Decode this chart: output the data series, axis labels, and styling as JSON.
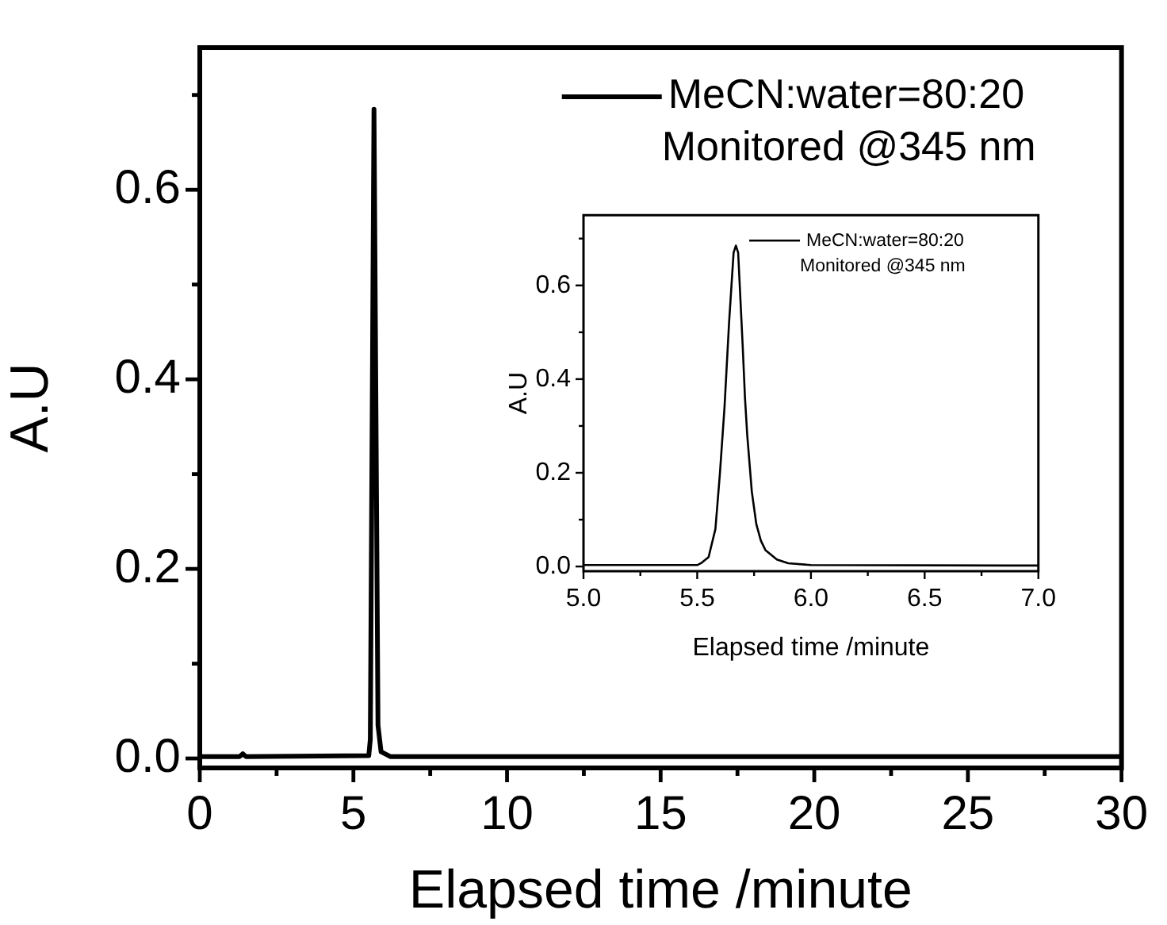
{
  "chart_data": [
    {
      "type": "line",
      "xlabel": "Elapsed time /minute",
      "ylabel": "A.U",
      "legend": "top right",
      "annotations": [
        "Monitored @345 nm"
      ],
      "xlim": [
        0,
        30
      ],
      "xticks": [
        0,
        {
          "value": 2.5,
          "label": null
        },
        5,
        {
          "value": 7.5,
          "label": null
        },
        10,
        {
          "value": 12.5,
          "label": null
        },
        15,
        {
          "value": 17.5,
          "label": null
        },
        20,
        {
          "value": 22.5,
          "label": null
        },
        25,
        {
          "value": 27.5,
          "label": null
        },
        30
      ],
      "ylim": [
        -0.01,
        0.75
      ],
      "yticks": [
        {
          "value": 0,
          "label": "0.0"
        },
        {
          "value": 0.1,
          "label": null
        },
        {
          "value": 0.2,
          "label": "0.2"
        },
        {
          "value": 0.3,
          "label": null
        },
        {
          "value": 0.4,
          "label": "0.4"
        },
        {
          "value": 0.5,
          "label": null
        },
        {
          "value": 0.6,
          "label": "0.6"
        },
        {
          "value": 0.7,
          "label": null
        }
      ],
      "series": [
        {
          "name": "MeCN:water=80:20",
          "color": "#000000",
          "x": [
            0,
            1.3,
            1.4,
            1.5,
            5.5,
            5.55,
            5.67,
            5.8,
            5.9,
            6.2,
            30
          ],
          "values": [
            0.002,
            0.002,
            0.005,
            0.002,
            0.003,
            0.02,
            0.685,
            0.035,
            0.007,
            0.002,
            0.002
          ]
        }
      ]
    },
    {
      "type": "line",
      "xlabel": "Elapsed time /minute",
      "ylabel": "A.U",
      "legend": "top right",
      "annotations": [
        "Monitored @345 nm"
      ],
      "xlim": [
        5,
        7
      ],
      "xticks": [
        {
          "value": 5,
          "label": "5.0"
        },
        {
          "value": 5.25,
          "label": null
        },
        {
          "value": 5.5,
          "label": "5.5"
        },
        {
          "value": 5.75,
          "label": null
        },
        {
          "value": 6,
          "label": "6.0"
        },
        {
          "value": 6.25,
          "label": null
        },
        {
          "value": 6.5,
          "label": "6.5"
        },
        {
          "value": 6.75,
          "label": null
        },
        {
          "value": 7,
          "label": "7.0"
        }
      ],
      "ylim": [
        -0.01,
        0.75
      ],
      "yticks": [
        {
          "value": 0,
          "label": "0.0"
        },
        {
          "value": 0.1,
          "label": null
        },
        {
          "value": 0.2,
          "label": "0.2"
        },
        {
          "value": 0.3,
          "label": null
        },
        {
          "value": 0.4,
          "label": "0.4"
        },
        {
          "value": 0.5,
          "label": null
        },
        {
          "value": 0.6,
          "label": "0.6"
        },
        {
          "value": 0.7,
          "label": null
        }
      ],
      "series": [
        {
          "name": "MeCN:water=80:20",
          "color": "#000000",
          "x": [
            5,
            5.5,
            5.52,
            5.55,
            5.58,
            5.6,
            5.62,
            5.64,
            5.66,
            5.67,
            5.68,
            5.7,
            5.71,
            5.72,
            5.74,
            5.76,
            5.78,
            5.8,
            5.85,
            5.9,
            6,
            7
          ],
          "values": [
            0.003,
            0.003,
            0.008,
            0.02,
            0.08,
            0.2,
            0.34,
            0.52,
            0.67,
            0.685,
            0.67,
            0.47,
            0.36,
            0.28,
            0.16,
            0.09,
            0.055,
            0.035,
            0.015,
            0.007,
            0.003,
            0.002
          ]
        }
      ]
    }
  ]
}
